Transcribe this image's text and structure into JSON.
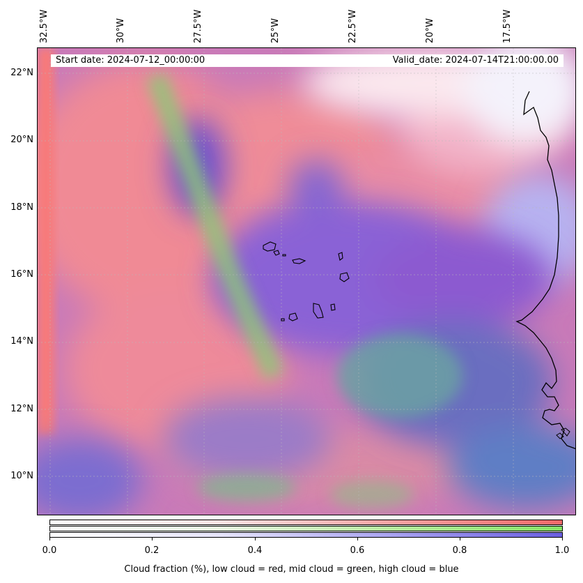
{
  "header": {
    "start_date": "Start date: 2024-07-12_00:00:00",
    "valid_date": "Valid_date: 2024-07-14T21:00:00.00"
  },
  "map": {
    "projection": "plate-carree",
    "lon_range": [
      -33.0,
      -16.0
    ],
    "lat_range": [
      8.8,
      22.8
    ],
    "gridlines": true,
    "lon_ticks": [
      "32.5°W",
      "30°W",
      "27.5°W",
      "25°W",
      "22.5°W",
      "20°W",
      "17.5°W"
    ],
    "lat_ticks": [
      "22°N",
      "20°N",
      "18°N",
      "16°N",
      "14°N",
      "12°N",
      "10°N"
    ],
    "features": [
      "West African coastline",
      "Cape Verde islands"
    ],
    "colors": {
      "low_cloud": "#ff6b6b",
      "mid_cloud": "#7de06a",
      "high_cloud": "#6a5ad8"
    }
  },
  "colorbar": {
    "ticks": [
      "0.0",
      "0.2",
      "0.4",
      "0.6",
      "0.8",
      "1.0"
    ],
    "label": "Cloud fraction (%), low cloud = red, mid cloud = green, high cloud = blue",
    "range": [
      0.0,
      1.0
    ]
  }
}
